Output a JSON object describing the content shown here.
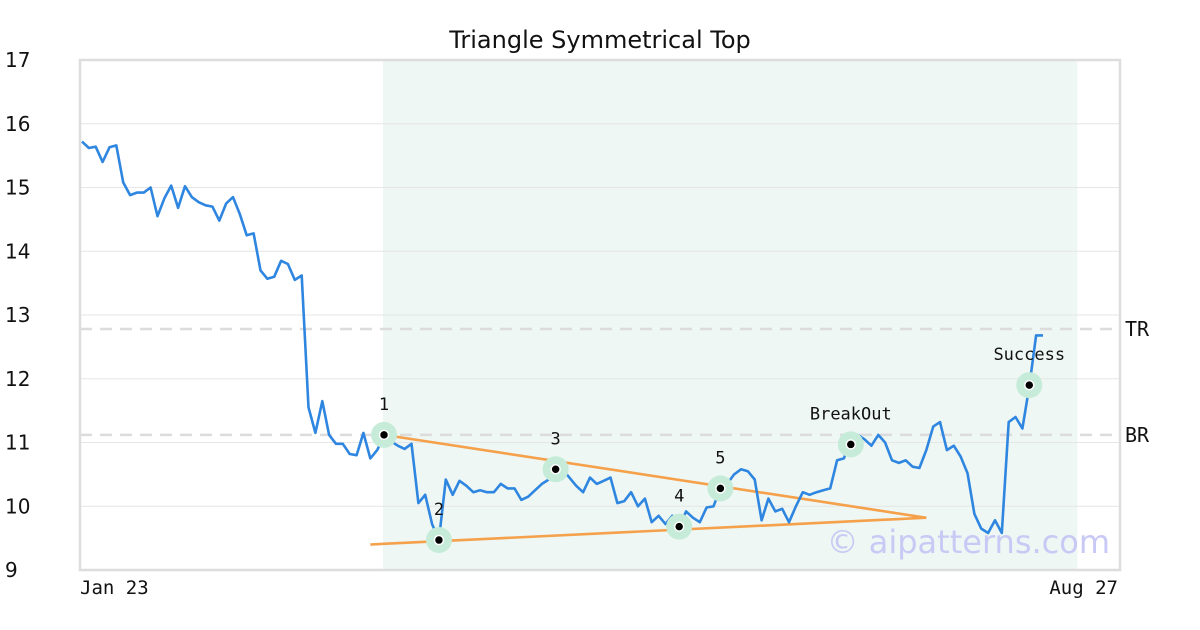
{
  "chart_data": {
    "type": "line",
    "title": "Triangle Symmetrical Top",
    "xlabel": "",
    "ylabel": "",
    "ylim": [
      9,
      17
    ],
    "yticks": [
      9,
      10,
      11,
      12,
      13,
      14,
      15,
      16,
      17
    ],
    "x_start_label": "Jan 23",
    "x_end_label": "Aug 27",
    "grid": true,
    "line_color": "#2f86e0",
    "trend_color": "#f5a04a",
    "highlight_color": "#eef7f3",
    "marker_halo_color": "#c6ecd9",
    "levels": [
      {
        "name": "TR",
        "value": 12.78
      },
      {
        "name": "BR",
        "value": 11.12
      }
    ],
    "highlight_range": [
      44,
      145
    ],
    "series": [
      {
        "values": [
          15.72,
          15.62,
          15.64,
          15.4,
          15.63,
          15.66,
          15.08,
          14.88,
          14.92,
          14.92,
          15.0,
          14.55,
          14.83,
          15.03,
          14.68,
          15.02,
          14.85,
          14.77,
          14.72,
          14.7,
          14.48,
          14.75,
          14.85,
          14.58,
          14.25,
          14.28,
          13.7,
          13.57,
          13.6,
          13.85,
          13.8,
          13.55,
          13.62,
          11.55,
          11.15,
          11.65,
          11.12,
          10.98,
          10.98,
          10.82,
          10.8,
          11.15,
          10.75,
          10.88,
          11.1,
          11.02,
          10.95,
          10.9,
          10.98,
          10.05,
          10.18,
          9.72,
          9.47,
          10.42,
          10.18,
          10.4,
          10.32,
          10.22,
          10.25,
          10.22,
          10.22,
          10.35,
          10.28,
          10.28,
          10.1,
          10.15,
          10.25,
          10.35,
          10.42,
          10.55,
          10.58,
          10.45,
          10.32,
          10.22,
          10.45,
          10.35,
          10.4,
          10.45,
          10.05,
          10.08,
          10.22,
          10.0,
          10.12,
          9.75,
          9.85,
          9.72,
          9.85,
          9.68,
          9.92,
          9.82,
          9.75,
          9.98,
          10.0,
          10.28,
          10.35,
          10.5,
          10.58,
          10.55,
          10.42,
          9.78,
          10.12,
          9.92,
          9.96,
          9.75,
          10.0,
          10.22,
          10.18,
          10.22,
          10.25,
          10.28,
          10.72,
          10.75,
          11.05,
          11.12,
          11.05,
          10.95,
          11.12,
          11.0,
          10.72,
          10.68,
          10.72,
          10.62,
          10.6,
          10.88,
          11.25,
          11.32,
          10.88,
          10.95,
          10.78,
          10.52,
          9.88,
          9.65,
          9.58,
          9.78,
          9.58,
          11.32,
          11.4,
          11.22,
          11.88,
          12.68,
          12.68
        ]
      }
    ],
    "trendlines": [
      {
        "from": [
          44,
          11.12
        ],
        "to": [
          123,
          9.82
        ]
      },
      {
        "from": [
          42,
          9.4
        ],
        "to": [
          123,
          9.82
        ]
      }
    ],
    "points": [
      {
        "label": "1",
        "x": 44,
        "y": 11.12
      },
      {
        "label": "2",
        "x": 52,
        "y": 9.47
      },
      {
        "label": "3",
        "x": 69,
        "y": 10.58
      },
      {
        "label": "4",
        "x": 87,
        "y": 9.68
      },
      {
        "label": "5",
        "x": 93,
        "y": 10.28
      },
      {
        "label": "BreakOut",
        "x": 112,
        "y": 10.97
      },
      {
        "label": "Success",
        "x": 138,
        "y": 11.9
      }
    ],
    "watermark": "© aipatterns.com"
  }
}
